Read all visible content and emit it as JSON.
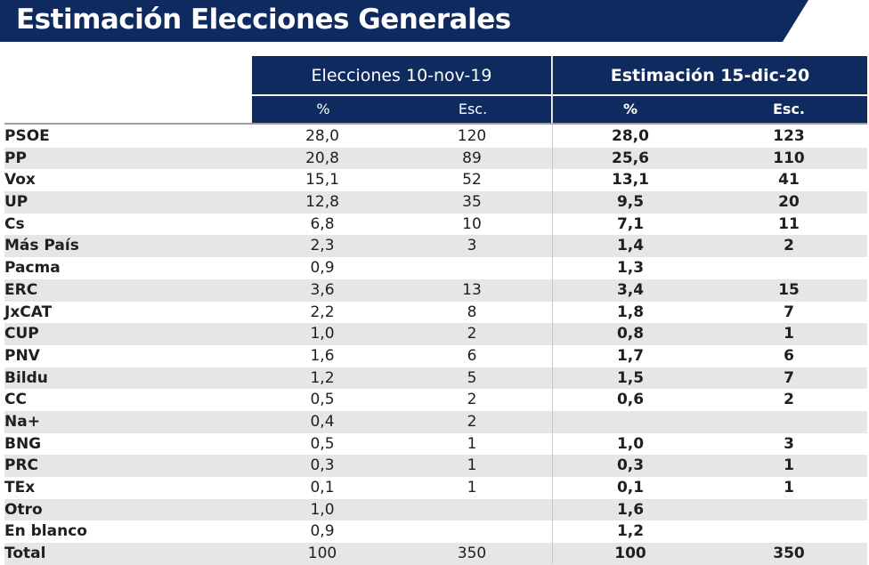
{
  "title": "Estimación Elecciones Generales",
  "columns": {
    "group1": "Elecciones 10-nov-19",
    "group2": "Estimación 15-dic-20",
    "pct": "%",
    "esc": "Esc."
  },
  "rows": [
    {
      "party": "PSOE",
      "p19": "28,0",
      "e19": "120",
      "p20": "28,0",
      "e20": "123"
    },
    {
      "party": "PP",
      "p19": "20,8",
      "e19": "89",
      "p20": "25,6",
      "e20": "110"
    },
    {
      "party": "Vox",
      "p19": "15,1",
      "e19": "52",
      "p20": "13,1",
      "e20": "41"
    },
    {
      "party": "UP",
      "p19": "12,8",
      "e19": "35",
      "p20": "9,5",
      "e20": "20"
    },
    {
      "party": "Cs",
      "p19": "6,8",
      "e19": "10",
      "p20": "7,1",
      "e20": "11"
    },
    {
      "party": "Más País",
      "p19": "2,3",
      "e19": "3",
      "p20": "1,4",
      "e20": "2"
    },
    {
      "party": "Pacma",
      "p19": "0,9",
      "e19": "",
      "p20": "1,3",
      "e20": ""
    },
    {
      "party": "ERC",
      "p19": "3,6",
      "e19": "13",
      "p20": "3,4",
      "e20": "15"
    },
    {
      "party": "JxCAT",
      "p19": "2,2",
      "e19": "8",
      "p20": "1,8",
      "e20": "7"
    },
    {
      "party": "CUP",
      "p19": "1,0",
      "e19": "2",
      "p20": "0,8",
      "e20": "1"
    },
    {
      "party": "PNV",
      "p19": "1,6",
      "e19": "6",
      "p20": "1,7",
      "e20": "6"
    },
    {
      "party": "Bildu",
      "p19": "1,2",
      "e19": "5",
      "p20": "1,5",
      "e20": "7"
    },
    {
      "party": "CC",
      "p19": "0,5",
      "e19": "2",
      "p20": "0,6",
      "e20": "2"
    },
    {
      "party": "Na+",
      "p19": "0,4",
      "e19": "2",
      "p20": "",
      "e20": ""
    },
    {
      "party": "BNG",
      "p19": "0,5",
      "e19": "1",
      "p20": "1,0",
      "e20": "3"
    },
    {
      "party": "PRC",
      "p19": "0,3",
      "e19": "1",
      "p20": "0,3",
      "e20": "1"
    },
    {
      "party": "TEx",
      "p19": "0,1",
      "e19": "1",
      "p20": "0,1",
      "e20": "1"
    },
    {
      "party": "Otro",
      "p19": "1,0",
      "e19": "",
      "p20": "1,6",
      "e20": ""
    },
    {
      "party": "En blanco",
      "p19": "0,9",
      "e19": "",
      "p20": "1,2",
      "e20": ""
    },
    {
      "party": "Total",
      "p19": "100",
      "e19": "350",
      "p20": "100",
      "e20": "350"
    }
  ]
}
